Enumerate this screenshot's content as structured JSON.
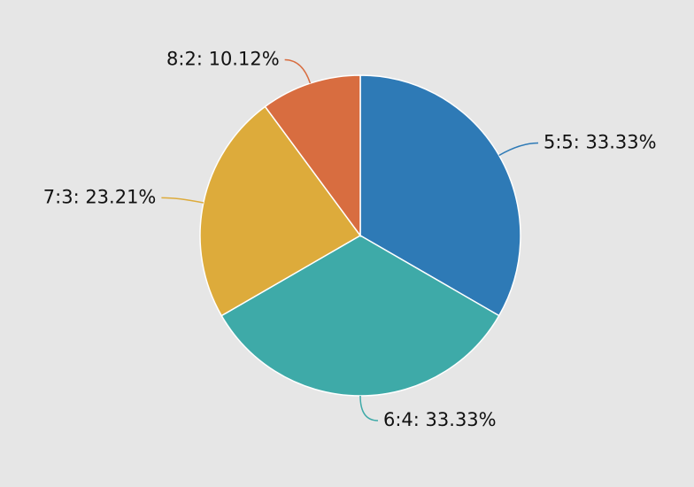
{
  "chart_data": {
    "type": "pie",
    "values": [
      33.33,
      33.33,
      23.21,
      10.12
    ],
    "value_labels": [
      "5:5: 33.33%",
      "6:4: 33.33%",
      "7:3: 23.21%",
      "8:2: 10.12%"
    ],
    "colors": [
      "#2e7ab6",
      "#3eaaa8",
      "#ddab3b",
      "#d86d40"
    ]
  }
}
